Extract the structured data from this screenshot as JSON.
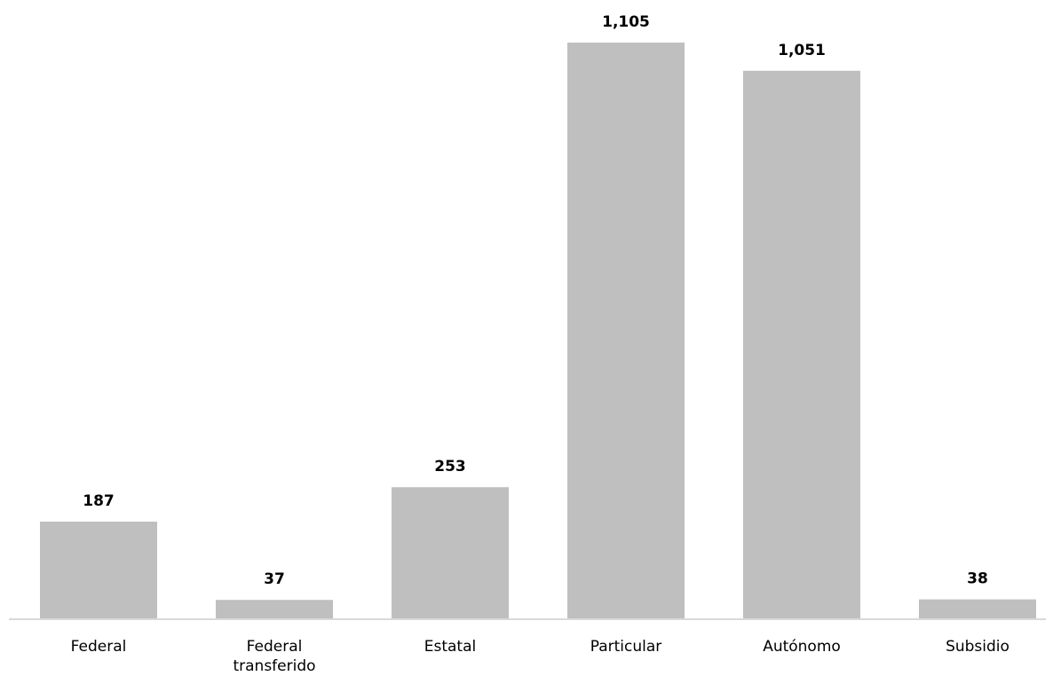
{
  "chart_data": {
    "type": "bar",
    "title": "",
    "xlabel": "",
    "ylabel": "",
    "categories": [
      [
        "Federal"
      ],
      [
        "Federal",
        "transferido"
      ],
      [
        "Estatal"
      ],
      [
        "Particular"
      ],
      [
        "Autónomo"
      ],
      [
        "Subsidio"
      ]
    ],
    "values": [
      187,
      37,
      253,
      1105,
      1051,
      38
    ],
    "value_labels": [
      "187",
      "37",
      "253",
      "1,105",
      "1,051",
      "38"
    ],
    "ylim": [
      0,
      1105
    ],
    "grid": false,
    "legend": "none",
    "colors": {
      "bar": "#bfbfbf",
      "axis": "#d9d9d9",
      "text": "#000000"
    }
  }
}
